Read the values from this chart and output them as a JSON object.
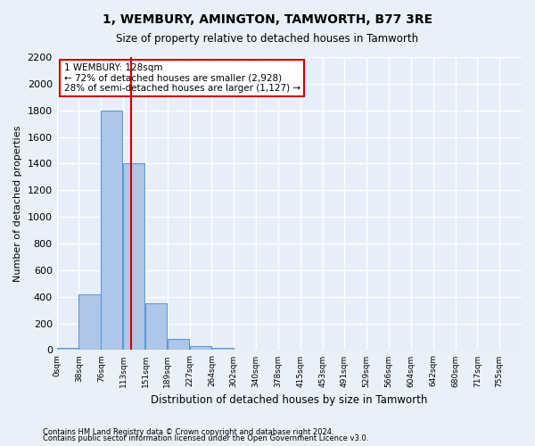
{
  "title": "1, WEMBURY, AMINGTON, TAMWORTH, B77 3RE",
  "subtitle": "Size of property relative to detached houses in Tamworth",
  "xlabel": "Distribution of detached houses by size in Tamworth",
  "ylabel": "Number of detached properties",
  "bar_color": "#aec6e8",
  "bar_edge_color": "#5b9bd5",
  "background_color": "#e8eef8",
  "grid_color": "#ffffff",
  "bin_labels": [
    "0sqm",
    "38sqm",
    "76sqm",
    "113sqm",
    "151sqm",
    "189sqm",
    "227sqm",
    "264sqm",
    "302sqm",
    "340sqm",
    "378sqm",
    "415sqm",
    "453sqm",
    "491sqm",
    "529sqm",
    "566sqm",
    "604sqm",
    "642sqm",
    "680sqm",
    "717sqm",
    "755sqm"
  ],
  "bar_values": [
    15,
    420,
    1800,
    1400,
    350,
    80,
    30,
    15,
    0,
    0,
    0,
    0,
    0,
    0,
    0,
    0,
    0,
    0,
    0,
    0,
    0
  ],
  "vline_x": 128,
  "vline_color": "#cc0000",
  "annotation_text": "1 WEMBURY: 128sqm\n← 72% of detached houses are smaller (2,928)\n28% of semi-detached houses are larger (1,127) →",
  "annotation_box_color": "#ffffff",
  "annotation_box_edge_color": "#cc0000",
  "ylim": [
    0,
    2200
  ],
  "yticks": [
    0,
    200,
    400,
    600,
    800,
    1000,
    1200,
    1400,
    1600,
    1800,
    2000,
    2200
  ],
  "footnote1": "Contains HM Land Registry data © Crown copyright and database right 2024.",
  "footnote2": "Contains public sector information licensed under the Open Government Licence v3.0.",
  "bin_width": 38
}
